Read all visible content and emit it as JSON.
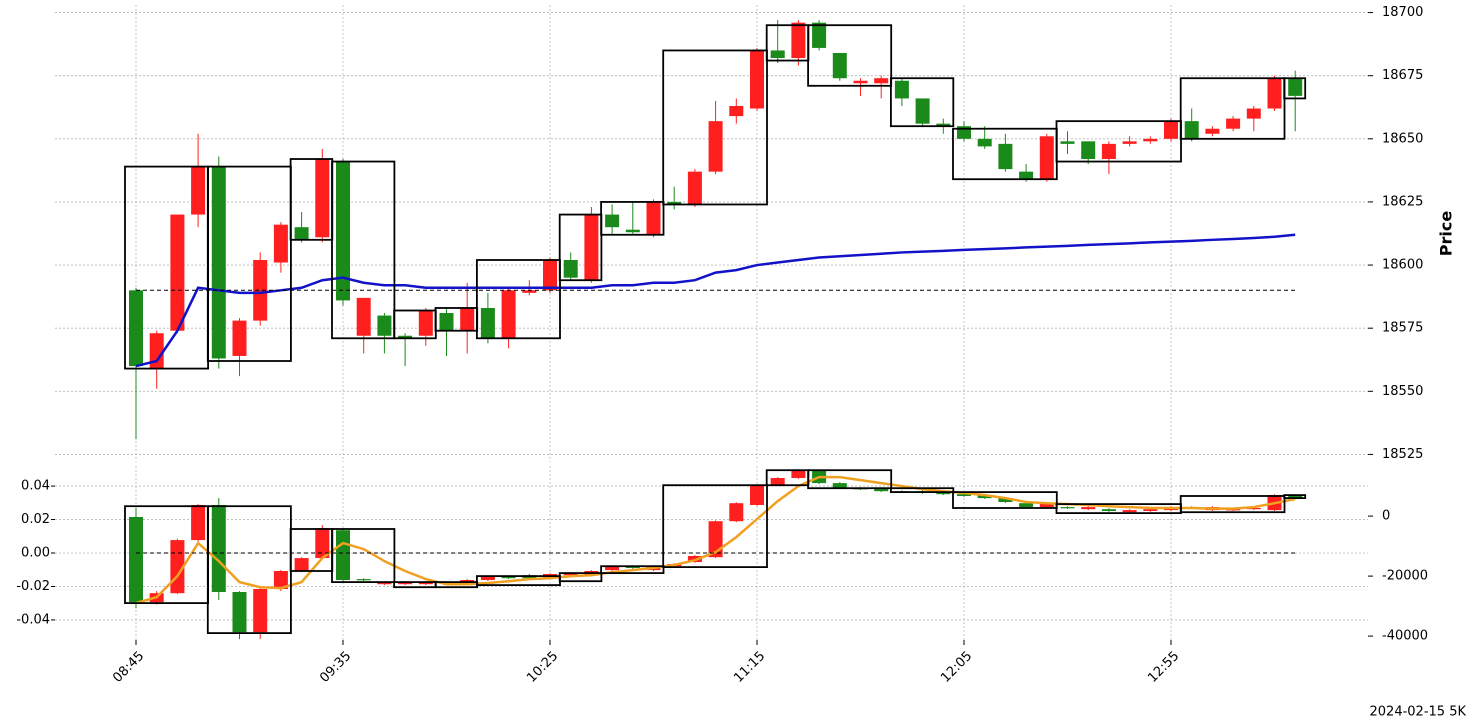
{
  "chart_data": [
    {
      "type": "candlestick",
      "axis": "y2",
      "up_color": "#1a8a1a",
      "down_color": "#ff1f1f",
      "open": [
        18560,
        18573,
        18620,
        18639,
        18563,
        18578,
        18602,
        18616,
        18610,
        18642,
        18586,
        18587,
        18572,
        18571,
        18582,
        18574,
        18583,
        18571,
        18590,
        18590,
        18602,
        18595,
        18620,
        18615,
        18613,
        18625,
        18624,
        18637,
        18657,
        18663,
        18685,
        18682,
        18696,
        18686,
        18674,
        18673,
        18674,
        18666,
        18656,
        18655,
        18650,
        18647,
        18638,
        18634,
        18651,
        18648,
        18642,
        18648,
        18649,
        18650,
        18657,
        18650,
        18654,
        18658,
        18662,
        18674,
        18667
      ],
      "high": [
        18591,
        18574,
        18620,
        18652,
        18643,
        18579,
        18605,
        18617,
        18621,
        18646,
        18642,
        18587,
        18581,
        18573,
        18583,
        18583,
        18593,
        18589,
        18591,
        18594,
        18603,
        18605,
        18623,
        18624,
        18625,
        18626,
        18631,
        18638,
        18665,
        18666,
        18686,
        18697,
        18697,
        18697,
        18684,
        18674,
        18675,
        18674,
        18666,
        18658,
        18657,
        18655,
        18652,
        18640,
        18652,
        18653,
        18649,
        18649,
        18651,
        18651,
        18658,
        18662,
        18655,
        18659,
        18663,
        18675,
        18677
      ],
      "low": [
        18531,
        18551,
        18573,
        18615,
        18559,
        18556,
        18576,
        18597,
        18609,
        18609,
        18584,
        18565,
        18565,
        18560,
        18568,
        18564,
        18565,
        18569,
        18567,
        18588,
        18589,
        18594,
        18593,
        18612,
        18612,
        18611,
        18622,
        18623,
        18636,
        18656,
        18661,
        18680,
        18679,
        18685,
        18673,
        18667,
        18666,
        18663,
        18655,
        18652,
        18649,
        18646,
        18637,
        18633,
        18633,
        18644,
        18640,
        18636,
        18647,
        18648,
        18649,
        18649,
        18651,
        18653,
        18653,
        18661,
        18653
      ],
      "close": [
        18590,
        18559,
        18574,
        18620,
        18639,
        18564,
        18578,
        18601,
        18615,
        18611,
        18641,
        18572,
        18580,
        18572,
        18572,
        18581,
        18574,
        18583,
        18571,
        18589,
        18590,
        18602,
        18594,
        18620,
        18614,
        18612,
        18625,
        18624,
        18637,
        18659,
        18662,
        18685,
        18682,
        18696,
        18684,
        18672,
        18672,
        18673,
        18666,
        18656,
        18655,
        18650,
        18648,
        18637,
        18634,
        18649,
        18649,
        18642,
        18648,
        18649,
        18650,
        18657,
        18652,
        18654,
        18658,
        18662,
        18674
      ],
      "lines": [
        {
          "color": "#1212c8",
          "values": [
            18560,
            18562,
            18574,
            18591,
            18590,
            18589,
            18589,
            18590,
            18591,
            18594,
            18595,
            18593,
            18592,
            18592,
            18591,
            18591,
            18591,
            18591,
            18591,
            18591,
            18591,
            18591,
            18591,
            18592,
            18592,
            18593,
            18593,
            18594,
            18597,
            18598,
            18600,
            18601,
            18602,
            18603,
            18603.5,
            18604,
            18604.5,
            18605,
            18605.3,
            18605.6,
            18606,
            18606.3,
            18606.6,
            18607,
            18607.3,
            18607.6,
            18608,
            18608.3,
            18608.6,
            18609,
            18609.3,
            18609.6,
            18610,
            18610.3,
            18610.7,
            18611.2,
            18612
          ]
        }
      ],
      "boxes": [
        {
          "start": 0,
          "end": 3,
          "high": 18639,
          "low": 18559
        },
        {
          "start": 4,
          "end": 7,
          "high": 18639,
          "low": 18562
        },
        {
          "start": 8,
          "end": 9,
          "high": 18642,
          "low": 18610
        },
        {
          "start": 10,
          "end": 12,
          "high": 18641,
          "low": 18571
        },
        {
          "start": 13,
          "end": 14,
          "high": 18582,
          "low": 18571
        },
        {
          "start": 15,
          "end": 16,
          "high": 18583,
          "low": 18574
        },
        {
          "start": 17,
          "end": 20,
          "high": 18602,
          "low": 18571
        },
        {
          "start": 21,
          "end": 22,
          "high": 18620,
          "low": 18594
        },
        {
          "start": 23,
          "end": 25,
          "high": 18625,
          "low": 18612
        },
        {
          "start": 26,
          "end": 30,
          "high": 18685,
          "low": 18624
        },
        {
          "start": 31,
          "end": 32,
          "high": 18695,
          "low": 18681
        },
        {
          "start": 33,
          "end": 36,
          "high": 18695,
          "low": 18671
        },
        {
          "start": 37,
          "end": 39,
          "high": 18674,
          "low": 18655
        },
        {
          "start": 40,
          "end": 44,
          "high": 18654,
          "low": 18634
        },
        {
          "start": 45,
          "end": 50,
          "high": 18657,
          "low": 18641
        },
        {
          "start": 51,
          "end": 55,
          "high": 18674,
          "low": 18650
        },
        {
          "start": 56,
          "end": 56,
          "high": 18674,
          "low": 18666
        }
      ],
      "hline": {
        "value": 18590,
        "axis": "y2"
      },
      "y2lim": [
        18522,
        18703
      ],
      "y2ticks": [
        18525,
        18550,
        18575,
        18600,
        18625,
        18650,
        18675,
        18700
      ],
      "y2label": "Price",
      "grid": true
    },
    {
      "type": "candlestick",
      "axis": "y2",
      "up_color": "#1a8a1a",
      "down_color": "#ff1f1f",
      "categories": [
        "08:45",
        null,
        null,
        null,
        null,
        null,
        null,
        null,
        null,
        null,
        "09:35",
        null,
        null,
        null,
        null,
        null,
        null,
        null,
        null,
        null,
        "10:25",
        null,
        null,
        null,
        null,
        null,
        null,
        null,
        null,
        null,
        "11:15",
        null,
        null,
        null,
        null,
        null,
        null,
        null,
        null,
        null,
        "12:05",
        null,
        null,
        null,
        null,
        null,
        null,
        null,
        null,
        null,
        "12:55",
        null,
        null,
        null,
        null,
        null,
        null
      ],
      "open": [
        -28700,
        -25700,
        -8000,
        3700,
        -25300,
        -38700,
        -24300,
        -18300,
        -14000,
        -4000,
        -21300,
        -21300,
        -22000,
        -22300,
        -22300,
        -22000,
        -21300,
        -20000,
        -20700,
        -20700,
        -19300,
        -19000,
        -18300,
        -16700,
        -17300,
        -16700,
        -16000,
        -13300,
        -1700,
        4300,
        10300,
        12700,
        15300,
        11000,
        9300,
        9000,
        8300,
        8000,
        7700,
        7300,
        6700,
        6000,
        4700,
        3000,
        4300,
        2700,
        3000,
        1700,
        2000,
        2300,
        3000,
        2700,
        3000,
        2300,
        2700,
        7000,
        6000
      ],
      "high": [
        2700,
        -25000,
        -7500,
        4000,
        6000,
        -25000,
        -24000,
        -18000,
        -13700,
        -3000,
        -4300,
        -20700,
        -21700,
        -22000,
        -22000,
        -21700,
        -21000,
        -19700,
        -19700,
        -19300,
        -19000,
        -18700,
        -18000,
        -16400,
        -16400,
        -16400,
        -15700,
        -13000,
        -1400,
        4600,
        10600,
        13000,
        15600,
        15600,
        11300,
        9600,
        9600,
        8600,
        8600,
        8000,
        7600,
        7300,
        6300,
        4600,
        4600,
        3300,
        3300,
        2600,
        2300,
        2600,
        3300,
        3300,
        3300,
        2600,
        3000,
        7300,
        7300
      ],
      "low": [
        -30700,
        -29500,
        -26000,
        -9000,
        -28000,
        -41000,
        -41000,
        -25000,
        -18700,
        -14300,
        -21700,
        -21700,
        -23000,
        -23000,
        -23000,
        -22600,
        -22600,
        -21600,
        -21000,
        -21000,
        -21000,
        -20000,
        -20000,
        -19000,
        -17600,
        -18300,
        -17000,
        -15600,
        -14000,
        -2000,
        3400,
        10000,
        12400,
        10700,
        9000,
        8700,
        8000,
        7700,
        7400,
        7000,
        6400,
        5700,
        4400,
        2700,
        2700,
        2400,
        2000,
        1400,
        1000,
        1400,
        1700,
        2400,
        1700,
        1700,
        2000,
        1700,
        5700
      ],
      "close": [
        -300,
        -28700,
        -25700,
        -8000,
        3700,
        -25300,
        -38700,
        -24300,
        -18300,
        -14000,
        -4700,
        -21000,
        -22700,
        -22700,
        -22700,
        -22300,
        -22300,
        -21300,
        -20000,
        -19700,
        -20700,
        -19700,
        -19700,
        -18000,
        -16700,
        -18000,
        -16700,
        -15300,
        -13700,
        -1700,
        3700,
        10300,
        12700,
        15300,
        11000,
        9300,
        9300,
        8300,
        8300,
        7700,
        7300,
        7000,
        6000,
        4300,
        3000,
        3000,
        2300,
        2300,
        1300,
        1700,
        2000,
        3000,
        2000,
        2000,
        2300,
        2000,
        7000
      ],
      "lines": [
        {
          "color": "#f0a020",
          "values": [
            -29000,
            -27000,
            -20000,
            -9000,
            -15000,
            -22000,
            -23700,
            -24000,
            -22000,
            -14000,
            -9000,
            -11000,
            -15000,
            -18300,
            -21000,
            -22700,
            -22700,
            -22300,
            -21700,
            -21000,
            -20700,
            -20000,
            -19700,
            -18700,
            -18000,
            -17300,
            -16300,
            -14700,
            -12000,
            -7000,
            -1000,
            5000,
            10000,
            13000,
            13000,
            12000,
            11000,
            10000,
            9000,
            8300,
            7700,
            7000,
            6000,
            4700,
            4300,
            4000,
            3700,
            3300,
            3000,
            2700,
            2700,
            2700,
            2500,
            2500,
            3000,
            4300,
            5700
          ]
        }
      ],
      "boxes": [
        {
          "start": 0,
          "end": 3,
          "high": 3300,
          "low": -29000
        },
        {
          "start": 4,
          "end": 7,
          "high": 3300,
          "low": -39000
        },
        {
          "start": 8,
          "end": 9,
          "high": -4300,
          "low": -18300
        },
        {
          "start": 10,
          "end": 12,
          "high": -4300,
          "low": -22000
        },
        {
          "start": 13,
          "end": 14,
          "high": -22000,
          "low": -23700
        },
        {
          "start": 15,
          "end": 16,
          "high": -22000,
          "low": -23700
        },
        {
          "start": 17,
          "end": 20,
          "high": -20000,
          "low": -23000
        },
        {
          "start": 21,
          "end": 22,
          "high": -19000,
          "low": -21700
        },
        {
          "start": 23,
          "end": 25,
          "high": -16700,
          "low": -19000
        },
        {
          "start": 26,
          "end": 30,
          "high": 10300,
          "low": -17000
        },
        {
          "start": 31,
          "end": 32,
          "high": 15300,
          "low": 10300
        },
        {
          "start": 33,
          "end": 36,
          "high": 15300,
          "low": 9300
        },
        {
          "start": 37,
          "end": 39,
          "high": 9300,
          "low": 8000
        },
        {
          "start": 40,
          "end": 44,
          "high": 8000,
          "low": 2700
        },
        {
          "start": 45,
          "end": 50,
          "high": 4000,
          "low": 1000
        },
        {
          "start": 51,
          "end": 55,
          "high": 6700,
          "low": 1300
        },
        {
          "start": 56,
          "end": 56,
          "high": 7000,
          "low": 6000
        }
      ],
      "hline": {
        "value": 0,
        "axis": "y"
      },
      "ylim": [
        -0.052,
        0.052
      ],
      "yticks": [
        -0.04,
        -0.02,
        {
          "value": 0,
          "label": "0.00"
        },
        0.02,
        0.04
      ],
      "y2lim": [
        -41300,
        16700
      ],
      "y2ticks": [
        -40000,
        -20000,
        0
      ],
      "grid": true,
      "footer": "2024-02-15 5K"
    }
  ]
}
